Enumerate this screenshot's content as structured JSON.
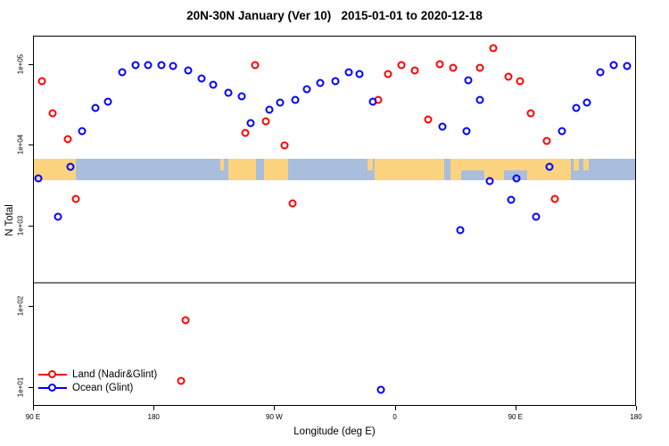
{
  "chart_data": {
    "type": "scatter",
    "title": "20N-30N January (Ver 10)   2015-01-01 to 2020-12-18",
    "xlabel": "Longitude (deg E)",
    "ylabel": "N Total",
    "x_axis": {
      "note": "degrees of longitude eastward from 90E, wrapping 450 deg total",
      "range": [
        0,
        450
      ],
      "ticks": [
        {
          "pos": 0,
          "label": "90 E"
        },
        {
          "pos": 90,
          "label": "180"
        },
        {
          "pos": 180,
          "label": "90 W"
        },
        {
          "pos": 270,
          "label": "0"
        },
        {
          "pos": 360,
          "label": "90 E"
        },
        {
          "pos": 450,
          "label": "180"
        }
      ]
    },
    "y_axis": {
      "scale": "log10",
      "log_range": [
        0.764,
        5.35
      ],
      "ticks": [
        {
          "value": 10,
          "label": "1e+01"
        },
        {
          "value": 100,
          "label": "1e+02"
        },
        {
          "value": 1000,
          "label": "1e+03"
        },
        {
          "value": 10000,
          "label": "1e+04"
        },
        {
          "value": 100000,
          "label": "1e+05"
        }
      ]
    },
    "divider_line_log10": 2.315,
    "map_band": {
      "ocean_color": "#a8bedc",
      "land_color": "#fcd37f",
      "log_top": 3.84,
      "log_bottom": 3.575,
      "land_segments": [
        {
          "from": 0,
          "to": 31.5,
          "part": "full"
        },
        {
          "from": 139,
          "to": 142,
          "part": "top"
        },
        {
          "from": 145,
          "to": 166,
          "part": "full"
        },
        {
          "from": 172,
          "to": 190,
          "part": "full"
        },
        {
          "from": 249,
          "to": 253,
          "part": "top"
        },
        {
          "from": 254,
          "to": 306,
          "part": "full"
        },
        {
          "from": 311,
          "to": 319,
          "part": "full"
        },
        {
          "from": 319,
          "to": 336,
          "part": "top"
        },
        {
          "from": 336,
          "to": 351,
          "part": "full"
        },
        {
          "from": 351,
          "to": 368,
          "part": "top"
        },
        {
          "from": 368,
          "to": 401,
          "part": "full"
        },
        {
          "from": 403,
          "to": 407,
          "part": "top"
        },
        {
          "from": 410,
          "to": 414,
          "part": "top"
        }
      ]
    },
    "series": [
      {
        "name": "Land (Nadir&Glint)",
        "color": "#ff0000",
        "points": [
          [
            6,
            62000
          ],
          [
            14,
            25000
          ],
          [
            25,
            12000
          ],
          [
            31,
            2200
          ],
          [
            110,
            12
          ],
          [
            113,
            69
          ],
          [
            158,
            14500
          ],
          [
            165,
            100000
          ],
          [
            173,
            20000
          ],
          [
            187,
            10000
          ],
          [
            193,
            1900
          ],
          [
            257,
            37000
          ],
          [
            264,
            76000
          ],
          [
            274,
            100000
          ],
          [
            284,
            86000
          ],
          [
            294,
            21000
          ],
          [
            303,
            103000
          ],
          [
            313,
            93000
          ],
          [
            333,
            91000
          ],
          [
            343,
            162000
          ],
          [
            354,
            72000
          ],
          [
            363,
            62000
          ],
          [
            371,
            25000
          ],
          [
            383,
            11500
          ],
          [
            389,
            2200
          ]
        ]
      },
      {
        "name": "Ocean (Glint)",
        "color": "#0000ff",
        "points": [
          [
            3,
            3900
          ],
          [
            18,
            1300
          ],
          [
            27,
            5400
          ],
          [
            36,
            15000
          ],
          [
            46,
            29000
          ],
          [
            55,
            35000
          ],
          [
            66,
            80000
          ],
          [
            76,
            100000
          ],
          [
            85,
            100000
          ],
          [
            95,
            100000
          ],
          [
            104,
            97000
          ],
          [
            115,
            86000
          ],
          [
            125,
            67000
          ],
          [
            134,
            57000
          ],
          [
            145,
            45000
          ],
          [
            155,
            41000
          ],
          [
            162,
            19000
          ],
          [
            176,
            28000
          ],
          [
            184,
            34000
          ],
          [
            195,
            37000
          ],
          [
            204,
            50000
          ],
          [
            214,
            59000
          ],
          [
            225,
            62000
          ],
          [
            235,
            81000
          ],
          [
            243,
            76000
          ],
          [
            253,
            35000
          ],
          [
            259,
            9.5
          ],
          [
            305,
            17000
          ],
          [
            318,
            890
          ],
          [
            323,
            15000
          ],
          [
            324,
            65000
          ],
          [
            333,
            37000
          ],
          [
            340,
            3600
          ],
          [
            356,
            2100
          ],
          [
            360,
            3900
          ],
          [
            375,
            1300
          ],
          [
            385,
            5400
          ],
          [
            394,
            15000
          ],
          [
            405,
            29000
          ],
          [
            413,
            34000
          ],
          [
            423,
            80000
          ],
          [
            433,
            100000
          ],
          [
            443,
            97000
          ]
        ]
      }
    ],
    "legend": {
      "items": [
        "Land (Nadir&Glint)",
        "Ocean (Glint)"
      ]
    }
  }
}
